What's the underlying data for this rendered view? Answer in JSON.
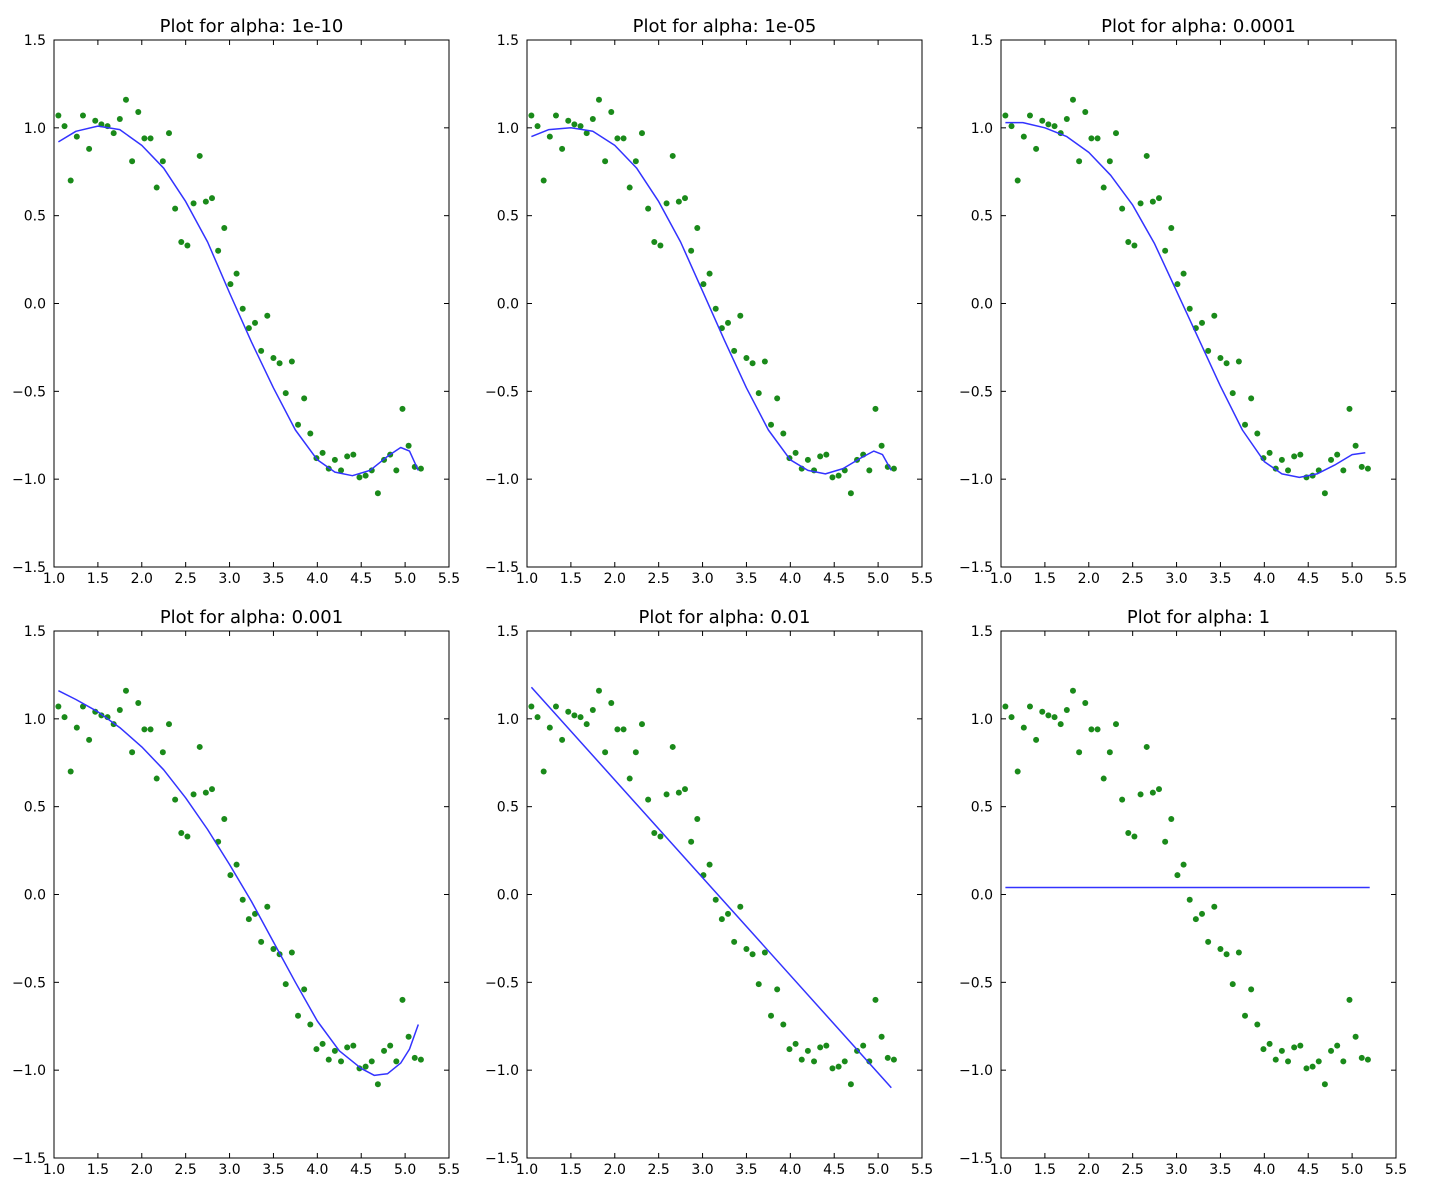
{
  "figure": {
    "colors": {
      "points": "#1a8a1a",
      "line": "#3333ff"
    }
  },
  "chart_data": [
    {
      "type": "line+scatter",
      "title": "Plot for alpha: 1e-10",
      "xlim": [
        1.0,
        5.5
      ],
      "ylim": [
        -1.5,
        1.5
      ],
      "xticks": [
        "1.0",
        "1.5",
        "2.0",
        "2.5",
        "3.0",
        "3.5",
        "4.0",
        "4.5",
        "5.0",
        "5.5"
      ],
      "yticks": [
        "1.5",
        "1.0",
        "0.5",
        "0.0",
        "−0.5",
        "−1.0",
        "−1.5"
      ],
      "fit": {
        "x": [
          1.05,
          1.25,
          1.5,
          1.75,
          2.0,
          2.25,
          2.5,
          2.75,
          3.0,
          3.25,
          3.5,
          3.75,
          4.0,
          4.2,
          4.4,
          4.6,
          4.8,
          4.95,
          5.05,
          5.15
        ],
        "y": [
          0.92,
          0.98,
          1.01,
          0.99,
          0.9,
          0.77,
          0.58,
          0.35,
          0.06,
          -0.22,
          -0.48,
          -0.72,
          -0.89,
          -0.96,
          -0.98,
          -0.95,
          -0.87,
          -0.82,
          -0.84,
          -0.95
        ]
      }
    },
    {
      "type": "line+scatter",
      "title": "Plot for alpha: 1e-05",
      "xlim": [
        1.0,
        5.5
      ],
      "ylim": [
        -1.5,
        1.5
      ],
      "xticks": [
        "1.0",
        "1.5",
        "2.0",
        "2.5",
        "3.0",
        "3.5",
        "4.0",
        "4.5",
        "5.0",
        "5.5"
      ],
      "yticks": [
        "1.5",
        "1.0",
        "0.5",
        "0.0",
        "−0.5",
        "−1.0",
        "−1.5"
      ],
      "fit": {
        "x": [
          1.05,
          1.25,
          1.5,
          1.75,
          2.0,
          2.25,
          2.5,
          2.75,
          3.0,
          3.25,
          3.5,
          3.75,
          4.0,
          4.2,
          4.4,
          4.6,
          4.8,
          4.95,
          5.05,
          5.15
        ],
        "y": [
          0.95,
          0.99,
          1.0,
          0.98,
          0.9,
          0.77,
          0.58,
          0.35,
          0.07,
          -0.21,
          -0.48,
          -0.72,
          -0.89,
          -0.95,
          -0.97,
          -0.94,
          -0.88,
          -0.84,
          -0.86,
          -0.95
        ]
      }
    },
    {
      "type": "line+scatter",
      "title": "Plot for alpha: 0.0001",
      "xlim": [
        1.0,
        5.5
      ],
      "ylim": [
        -1.5,
        1.5
      ],
      "xticks": [
        "1.0",
        "1.5",
        "2.0",
        "2.5",
        "3.0",
        "3.5",
        "4.0",
        "4.5",
        "5.0",
        "5.5"
      ],
      "yticks": [
        "1.5",
        "1.0",
        "0.5",
        "0.0",
        "−0.5",
        "−1.0",
        "−1.5"
      ],
      "fit": {
        "x": [
          1.05,
          1.25,
          1.5,
          1.75,
          2.0,
          2.25,
          2.5,
          2.75,
          3.0,
          3.25,
          3.5,
          3.75,
          4.0,
          4.2,
          4.4,
          4.6,
          4.8,
          5.0,
          5.15
        ],
        "y": [
          1.03,
          1.03,
          1.0,
          0.95,
          0.86,
          0.73,
          0.56,
          0.34,
          0.07,
          -0.2,
          -0.47,
          -0.72,
          -0.9,
          -0.97,
          -0.99,
          -0.97,
          -0.92,
          -0.86,
          -0.85
        ]
      }
    },
    {
      "type": "line+scatter",
      "title": "Plot for alpha: 0.001",
      "xlim": [
        1.0,
        5.5
      ],
      "ylim": [
        -1.5,
        1.5
      ],
      "xticks": [
        "1.0",
        "1.5",
        "2.0",
        "2.5",
        "3.0",
        "3.5",
        "4.0",
        "4.5",
        "5.0",
        "5.5"
      ],
      "yticks": [
        "1.5",
        "1.0",
        "0.5",
        "0.0",
        "−0.5",
        "−1.0",
        "−1.5"
      ],
      "fit": {
        "x": [
          1.05,
          1.25,
          1.5,
          1.75,
          2.0,
          2.25,
          2.5,
          2.75,
          3.0,
          3.25,
          3.5,
          3.75,
          4.0,
          4.25,
          4.5,
          4.65,
          4.8,
          4.95,
          5.05,
          5.15
        ],
        "y": [
          1.16,
          1.11,
          1.04,
          0.95,
          0.84,
          0.71,
          0.55,
          0.37,
          0.17,
          -0.04,
          -0.27,
          -0.5,
          -0.72,
          -0.89,
          -0.99,
          -1.03,
          -1.02,
          -0.96,
          -0.88,
          -0.74
        ]
      }
    },
    {
      "type": "line+scatter",
      "title": "Plot for alpha: 0.01",
      "xlim": [
        1.0,
        5.5
      ],
      "ylim": [
        -1.5,
        1.5
      ],
      "xticks": [
        "1.0",
        "1.5",
        "2.0",
        "2.5",
        "3.0",
        "3.5",
        "4.0",
        "4.5",
        "5.0",
        "5.5"
      ],
      "yticks": [
        "1.5",
        "1.0",
        "0.5",
        "0.0",
        "−0.5",
        "−1.0",
        "−1.5"
      ],
      "fit": {
        "x": [
          1.05,
          5.15
        ],
        "y": [
          1.18,
          -1.1
        ]
      }
    },
    {
      "type": "line+scatter",
      "title": "Plot for alpha: 1",
      "xlim": [
        1.0,
        5.5
      ],
      "ylim": [
        -1.5,
        1.5
      ],
      "xticks": [
        "1.0",
        "1.5",
        "2.0",
        "2.5",
        "3.0",
        "3.5",
        "4.0",
        "4.5",
        "5.0",
        "5.5"
      ],
      "yticks": [
        "1.5",
        "1.0",
        "0.5",
        "0.0",
        "−0.5",
        "−1.0",
        "−1.5"
      ],
      "fit": {
        "x": [
          1.05,
          5.2
        ],
        "y": [
          0.04,
          0.04
        ]
      }
    }
  ],
  "points": {
    "x": [
      1.05,
      1.12,
      1.19,
      1.26,
      1.33,
      1.4,
      1.47,
      1.54,
      1.61,
      1.68,
      1.75,
      1.82,
      1.89,
      1.96,
      2.03,
      2.1,
      2.17,
      2.24,
      2.31,
      2.38,
      2.45,
      2.52,
      2.59,
      2.66,
      2.73,
      2.8,
      2.87,
      2.94,
      3.01,
      3.08,
      3.15,
      3.22,
      3.29,
      3.36,
      3.43,
      3.5,
      3.57,
      3.64,
      3.71,
      3.78,
      3.85,
      3.92,
      3.99,
      4.06,
      4.13,
      4.2,
      4.27,
      4.34,
      4.41,
      4.48,
      4.55,
      4.62,
      4.69,
      4.76,
      4.83,
      4.9,
      4.97,
      5.04,
      5.11,
      5.18
    ],
    "y": [
      1.07,
      1.01,
      0.7,
      0.95,
      1.07,
      0.88,
      1.04,
      1.02,
      1.01,
      0.97,
      1.05,
      1.16,
      0.81,
      1.09,
      0.94,
      0.94,
      0.66,
      0.81,
      0.97,
      0.54,
      0.35,
      0.33,
      0.57,
      0.84,
      0.58,
      0.6,
      0.3,
      0.43,
      0.11,
      0.17,
      -0.03,
      -0.14,
      -0.11,
      -0.27,
      -0.07,
      -0.31,
      -0.34,
      -0.51,
      -0.33,
      -0.69,
      -0.54,
      -0.74,
      -0.88,
      -0.85,
      -0.94,
      -0.89,
      -0.95,
      -0.87,
      -0.86,
      -0.99,
      -0.98,
      -0.95,
      -1.08,
      -0.89,
      -0.86,
      -0.95,
      -0.6,
      -0.81,
      -0.93,
      -0.94
    ]
  }
}
